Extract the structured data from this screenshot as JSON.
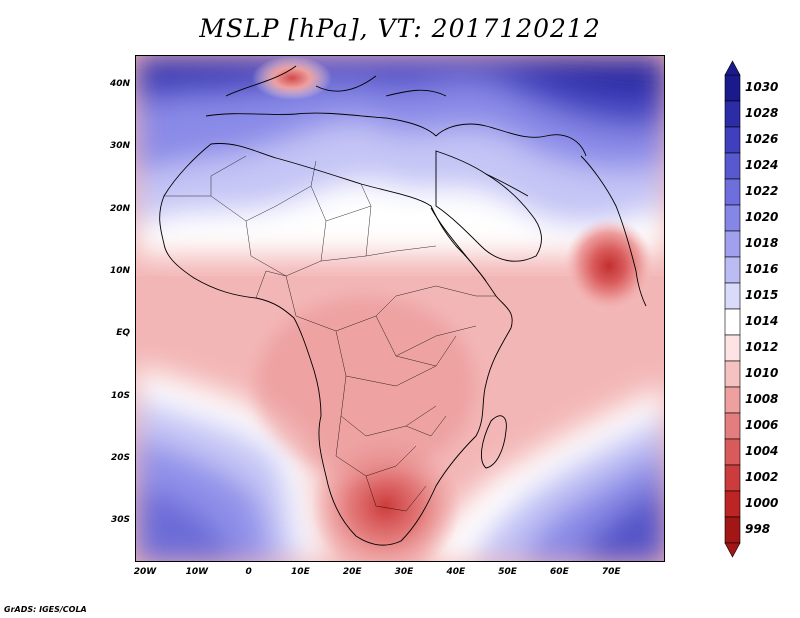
{
  "title": "MSLP [hPa], VT: 2017120212",
  "credit": "GrADS: IGES/COLA",
  "map": {
    "region": "Africa and Arabian Sea",
    "lat_labels": [
      "40N",
      "30N",
      "20N",
      "10N",
      "EQ",
      "10S",
      "20S",
      "30S"
    ],
    "lon_labels": [
      "20W",
      "10W",
      "0",
      "10E",
      "20E",
      "30E",
      "40E",
      "50E",
      "60E",
      "70E"
    ],
    "field": {
      "variable": "MSLP",
      "units": "hPa",
      "valid_time": "2017120212",
      "lows": [
        {
          "name": "Arabian Sea low",
          "lon": 69,
          "lat": 11,
          "value": 1004
        },
        {
          "name": "Mediterranean low",
          "lon": 8,
          "lat": 41,
          "value": 1006
        },
        {
          "name": "Kalahari low",
          "lon": 25,
          "lat": -25,
          "value": 1004
        }
      ],
      "highs": [
        {
          "name": "North Atlantic / Europe high",
          "lon": 0,
          "lat": 44,
          "value": 1026
        },
        {
          "name": "Asian high",
          "lon": 60,
          "lat": 44,
          "value": 1028
        },
        {
          "name": "South Atlantic high",
          "lon": -18,
          "lat": -30,
          "value": 1022
        },
        {
          "name": "South Indian Ocean high",
          "lon": 75,
          "lat": -33,
          "value": 1024
        }
      ]
    }
  },
  "colorbar": {
    "labels": [
      "1030",
      "1028",
      "1026",
      "1024",
      "1022",
      "1020",
      "1018",
      "1016",
      "1015",
      "1014",
      "1012",
      "1010",
      "1008",
      "1006",
      "1004",
      "1002",
      "1000",
      "998"
    ],
    "colors": [
      "#1a1a8c",
      "#2c2ca6",
      "#4040bf",
      "#5858cf",
      "#6e6edc",
      "#8686e6",
      "#a0a0ee",
      "#bcbcf5",
      "#dadafa",
      "#ffffff",
      "#fde3e3",
      "#f6c1c1",
      "#ee9f9f",
      "#e47d7d",
      "#d95a5a",
      "#cd3c3c",
      "#bd2424",
      "#a31616"
    ]
  }
}
